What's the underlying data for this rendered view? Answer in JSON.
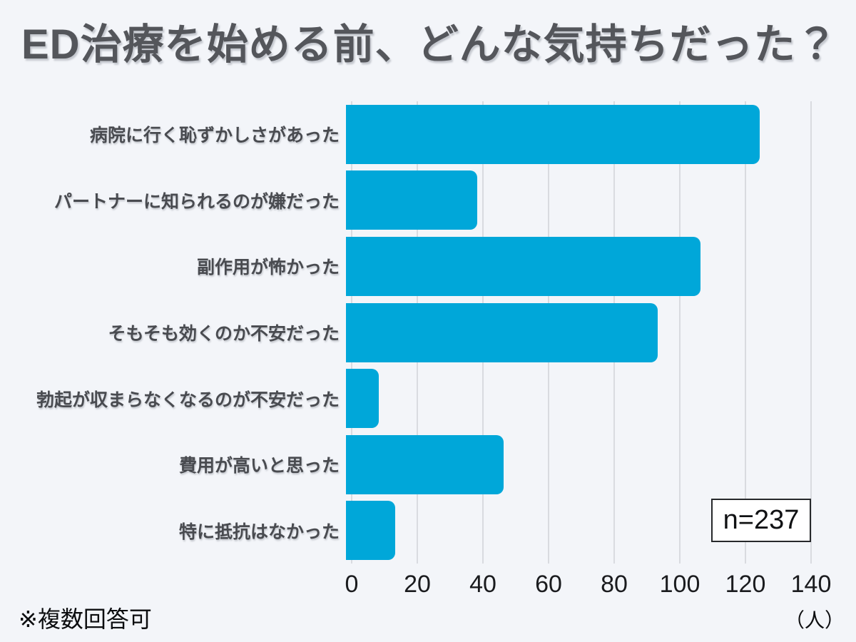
{
  "header": {
    "title": "ED治療を始める前、どんな気持ちだった？"
  },
  "footnote": "※複数回答可",
  "sample_badge": "n=237",
  "unit_label": "（人）",
  "colors": {
    "background": "#f3f5f9",
    "bar": "#00a7d9",
    "grid": "#d9dbe0",
    "title_text": "#54565b",
    "label_text": "#494b50",
    "tick_text": "#1a1b1e"
  },
  "chart_data": {
    "type": "bar",
    "orientation": "horizontal",
    "title": "ED治療を始める前、どんな気持ちだった？",
    "categories": [
      "病院に行く恥ずかしさがあった",
      "パートナーに知られるのが嫌だった",
      "副作用が怖かった",
      "そもそも効くのか不安だった",
      "勃起が収まらなくなるのが不安だった",
      "費用が高いと思った",
      "特に抵抗はなかった"
    ],
    "values": [
      126,
      40,
      108,
      95,
      10,
      48,
      15
    ],
    "xlim": [
      0,
      140
    ],
    "xticks": [
      0,
      20,
      40,
      60,
      80,
      100,
      120,
      140
    ],
    "xlabel": "（人）",
    "grid": true,
    "legend": false,
    "annotations": [
      "n=237",
      "※複数回答可"
    ]
  }
}
